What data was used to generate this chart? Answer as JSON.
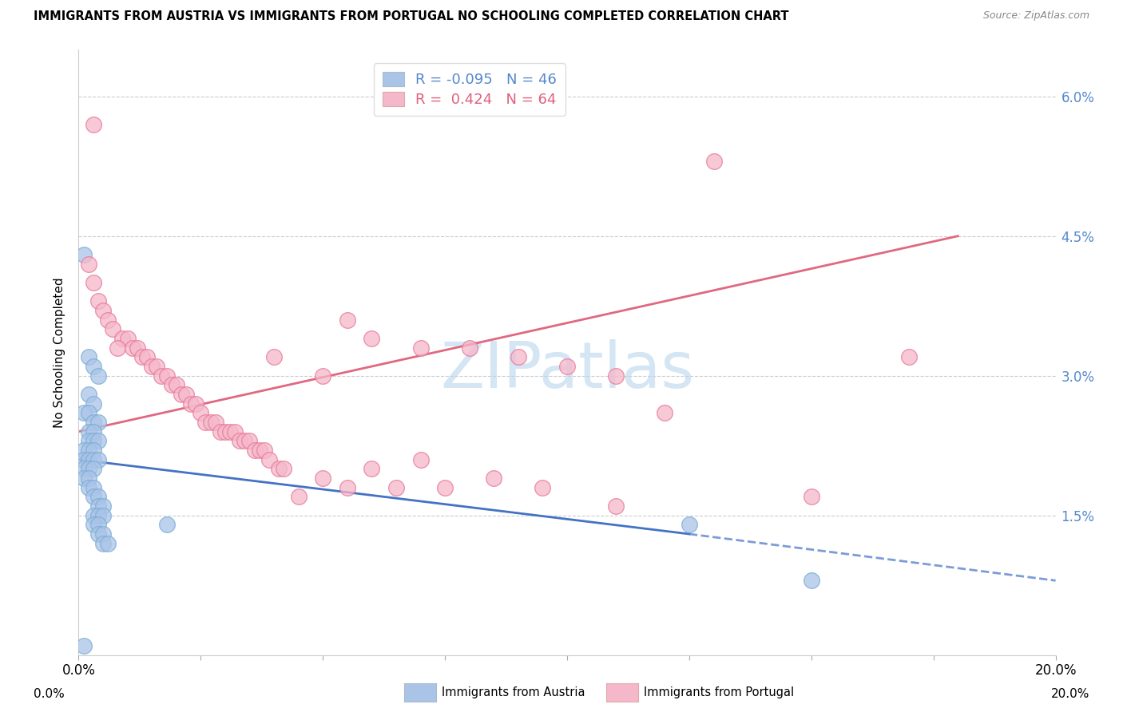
{
  "title": "IMMIGRANTS FROM AUSTRIA VS IMMIGRANTS FROM PORTUGAL NO SCHOOLING COMPLETED CORRELATION CHART",
  "source": "Source: ZipAtlas.com",
  "ylabel": "No Schooling Completed",
  "xlim": [
    0.0,
    0.2
  ],
  "ylim": [
    0.0,
    0.065
  ],
  "yticks": [
    0.0,
    0.015,
    0.03,
    0.045,
    0.06
  ],
  "ytick_labels": [
    "",
    "1.5%",
    "3.0%",
    "4.5%",
    "6.0%"
  ],
  "xticks": [
    0.0,
    0.025,
    0.05,
    0.075,
    0.1,
    0.125,
    0.15,
    0.175,
    0.2
  ],
  "xtick_labels": [
    "0.0%",
    "",
    "",
    "",
    "",
    "",
    "",
    "",
    "20.0%"
  ],
  "austria_color": "#aac4e8",
  "austria_edge": "#7aadd4",
  "portugal_color": "#f5b8ca",
  "portugal_edge": "#e87898",
  "austria_line_color": "#4472C4",
  "portugal_line_color": "#e06880",
  "legend_austria_R": "-0.095",
  "legend_austria_N": "46",
  "legend_portugal_R": "0.424",
  "legend_portugal_N": "64",
  "watermark": "ZIPatlas",
  "austria_trend_x": [
    0.0,
    0.125,
    0.2
  ],
  "austria_trend_solid_end": 0.125,
  "portugal_trend_x": [
    0.0,
    0.18
  ],
  "austria_points": [
    [
      0.001,
      0.043
    ],
    [
      0.002,
      0.032
    ],
    [
      0.003,
      0.031
    ],
    [
      0.004,
      0.03
    ],
    [
      0.002,
      0.028
    ],
    [
      0.003,
      0.027
    ],
    [
      0.001,
      0.026
    ],
    [
      0.002,
      0.026
    ],
    [
      0.003,
      0.025
    ],
    [
      0.004,
      0.025
    ],
    [
      0.002,
      0.024
    ],
    [
      0.003,
      0.024
    ],
    [
      0.002,
      0.023
    ],
    [
      0.003,
      0.023
    ],
    [
      0.004,
      0.023
    ],
    [
      0.001,
      0.022
    ],
    [
      0.002,
      0.022
    ],
    [
      0.003,
      0.022
    ],
    [
      0.001,
      0.021
    ],
    [
      0.002,
      0.021
    ],
    [
      0.003,
      0.021
    ],
    [
      0.004,
      0.021
    ],
    [
      0.001,
      0.02
    ],
    [
      0.002,
      0.02
    ],
    [
      0.003,
      0.02
    ],
    [
      0.001,
      0.019
    ],
    [
      0.002,
      0.019
    ],
    [
      0.002,
      0.018
    ],
    [
      0.003,
      0.018
    ],
    [
      0.003,
      0.017
    ],
    [
      0.004,
      0.017
    ],
    [
      0.004,
      0.016
    ],
    [
      0.005,
      0.016
    ],
    [
      0.003,
      0.015
    ],
    [
      0.004,
      0.015
    ],
    [
      0.005,
      0.015
    ],
    [
      0.003,
      0.014
    ],
    [
      0.004,
      0.014
    ],
    [
      0.004,
      0.013
    ],
    [
      0.005,
      0.013
    ],
    [
      0.005,
      0.012
    ],
    [
      0.006,
      0.012
    ],
    [
      0.018,
      0.014
    ],
    [
      0.125,
      0.014
    ],
    [
      0.001,
      0.001
    ],
    [
      0.15,
      0.008
    ]
  ],
  "portugal_points": [
    [
      0.003,
      0.057
    ],
    [
      0.13,
      0.053
    ],
    [
      0.002,
      0.042
    ],
    [
      0.003,
      0.04
    ],
    [
      0.004,
      0.038
    ],
    [
      0.005,
      0.037
    ],
    [
      0.006,
      0.036
    ],
    [
      0.055,
      0.036
    ],
    [
      0.007,
      0.035
    ],
    [
      0.009,
      0.034
    ],
    [
      0.01,
      0.034
    ],
    [
      0.06,
      0.034
    ],
    [
      0.07,
      0.033
    ],
    [
      0.008,
      0.033
    ],
    [
      0.011,
      0.033
    ],
    [
      0.012,
      0.033
    ],
    [
      0.08,
      0.033
    ],
    [
      0.013,
      0.032
    ],
    [
      0.014,
      0.032
    ],
    [
      0.04,
      0.032
    ],
    [
      0.09,
      0.032
    ],
    [
      0.17,
      0.032
    ],
    [
      0.015,
      0.031
    ],
    [
      0.016,
      0.031
    ],
    [
      0.1,
      0.031
    ],
    [
      0.017,
      0.03
    ],
    [
      0.018,
      0.03
    ],
    [
      0.05,
      0.03
    ],
    [
      0.11,
      0.03
    ],
    [
      0.019,
      0.029
    ],
    [
      0.02,
      0.029
    ],
    [
      0.021,
      0.028
    ],
    [
      0.022,
      0.028
    ],
    [
      0.023,
      0.027
    ],
    [
      0.024,
      0.027
    ],
    [
      0.025,
      0.026
    ],
    [
      0.12,
      0.026
    ],
    [
      0.026,
      0.025
    ],
    [
      0.027,
      0.025
    ],
    [
      0.028,
      0.025
    ],
    [
      0.029,
      0.024
    ],
    [
      0.03,
      0.024
    ],
    [
      0.031,
      0.024
    ],
    [
      0.032,
      0.024
    ],
    [
      0.033,
      0.023
    ],
    [
      0.034,
      0.023
    ],
    [
      0.035,
      0.023
    ],
    [
      0.036,
      0.022
    ],
    [
      0.037,
      0.022
    ],
    [
      0.038,
      0.022
    ],
    [
      0.039,
      0.021
    ],
    [
      0.07,
      0.021
    ],
    [
      0.041,
      0.02
    ],
    [
      0.042,
      0.02
    ],
    [
      0.06,
      0.02
    ],
    [
      0.05,
      0.019
    ],
    [
      0.085,
      0.019
    ],
    [
      0.055,
      0.018
    ],
    [
      0.065,
      0.018
    ],
    [
      0.075,
      0.018
    ],
    [
      0.095,
      0.018
    ],
    [
      0.045,
      0.017
    ],
    [
      0.15,
      0.017
    ],
    [
      0.11,
      0.016
    ]
  ]
}
